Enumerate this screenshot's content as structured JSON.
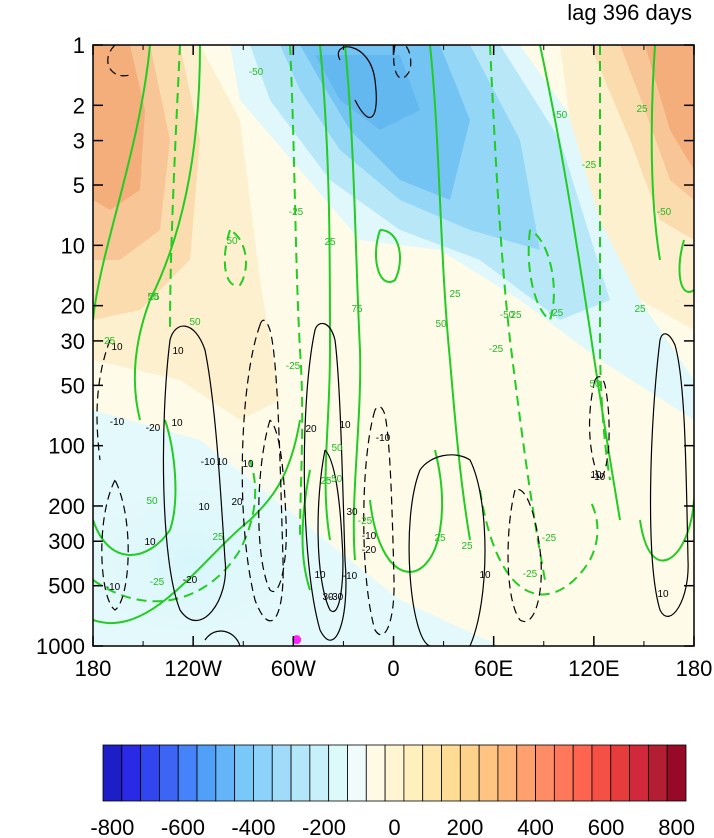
{
  "chart_data": {
    "type": "heatmap",
    "title": "lag 396 days",
    "x_ticks": [
      "180",
      "120W",
      "60W",
      "0",
      "60E",
      "120E",
      "180"
    ],
    "y_ticks": [
      "1",
      "2",
      "3",
      "5",
      "10",
      "20",
      "30",
      "50",
      "100",
      "200",
      "300",
      "500",
      "1000"
    ],
    "y_scale": "log",
    "y_inverted": true,
    "xlim": [
      -180,
      180
    ],
    "ylim": [
      1000,
      1
    ],
    "colorbar": {
      "min": -800,
      "max": 800,
      "step": 50,
      "tick_labels": [
        "-800",
        "-600",
        "-400",
        "-200",
        "0",
        "200",
        "400",
        "600",
        "800"
      ],
      "colors": [
        "#1e1ec8",
        "#2a2ae6",
        "#3246f0",
        "#3c64f5",
        "#4682fa",
        "#50a0fa",
        "#64b4fa",
        "#78c8fa",
        "#8cd2fa",
        "#a0dcfa",
        "#b4e6fa",
        "#c8f0fa",
        "#dcfafa",
        "#f0fcfc",
        "#fffae6",
        "#fff5d2",
        "#fff0be",
        "#ffe6aa",
        "#ffdc96",
        "#ffd28c",
        "#ffc382",
        "#ffb478",
        "#ffa06e",
        "#ff8c64",
        "#ff785a",
        "#ff6450",
        "#f55046",
        "#e63c3c",
        "#d2283c",
        "#b41e32",
        "#960a28"
      ]
    },
    "contour_labels_black": [
      "10",
      "-10",
      "10",
      "10",
      "-20",
      "-10",
      "10",
      "-20",
      "-10",
      "10",
      "20",
      "10",
      "10",
      "20",
      "30",
      "30",
      "-30",
      "-10",
      "10",
      "-10",
      "10",
      "-10",
      "-20",
      "10",
      "10",
      "-10",
      "10"
    ],
    "contour_labels_green": [
      "-50",
      "-25",
      "25",
      "50",
      "25",
      "50",
      "-25",
      "50",
      "75",
      "50",
      "25",
      "-25",
      "25",
      "-50",
      "-25",
      "50",
      "-50",
      "-25",
      "25",
      "-50",
      "25",
      "-25",
      "50",
      "-50",
      "25",
      "-25",
      "25",
      "-25",
      "25",
      "-25",
      "25",
      "-25",
      "50"
    ],
    "marker": {
      "lon": -58,
      "pressure": 930,
      "color": "#ff22ff"
    },
    "grid": false
  }
}
